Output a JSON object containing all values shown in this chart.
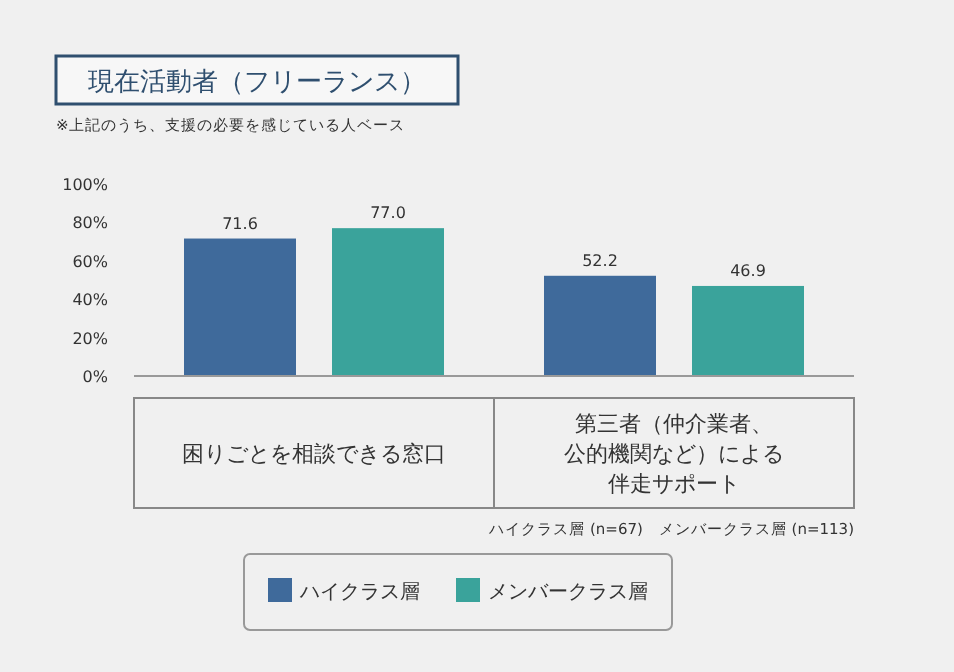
{
  "chart_data": {
    "type": "bar",
    "title": "現在活動者（フリーランス）",
    "subtitle": "※上記のうち、支援の必要を感じている人ベース",
    "categories": [
      "困りごとを相談できる窓口",
      "第三者（仲介業者、公的機関など）による伴走サポート"
    ],
    "series": [
      {
        "name": "ハイクラス層",
        "color": "#3f6a9b",
        "values": [
          71.6,
          52.2
        ]
      },
      {
        "name": "メンバークラス層",
        "color": "#3aa39b",
        "values": [
          77.0,
          46.9
        ]
      }
    ],
    "value_labels": [
      [
        "71.6",
        "52.2"
      ],
      [
        "77.0",
        "46.9"
      ]
    ],
    "ylim": [
      0,
      100
    ],
    "yticks": [
      {
        "value": 0,
        "label": "0%"
      },
      {
        "value": 20,
        "label": "20%"
      },
      {
        "value": 40,
        "label": "40%"
      },
      {
        "value": 60,
        "label": "60%"
      },
      {
        "value": 80,
        "label": "80%"
      },
      {
        "value": 100,
        "label": "100%"
      }
    ],
    "annotations": [
      "ハイクラス層 (n=67)　メンバークラス層 (n=113)"
    ],
    "legend": "bottom"
  }
}
